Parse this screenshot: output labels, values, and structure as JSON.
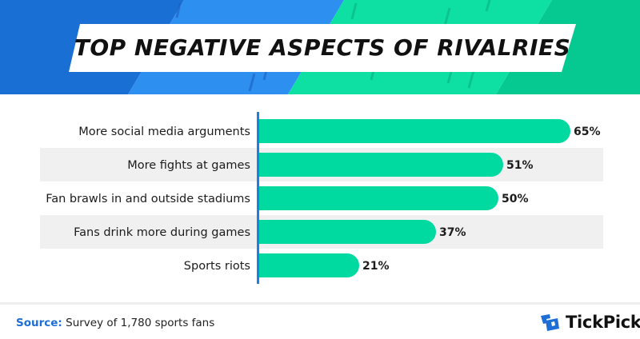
{
  "header": {
    "title": "TOP NEGATIVE ASPECTS OF RIVALRIES"
  },
  "chart_data": {
    "type": "bar",
    "orientation": "horizontal",
    "title": "TOP NEGATIVE ASPECTS OF RIVALRIES",
    "categories": [
      "More social media arguments",
      "More fights at games",
      "Fan brawls in and outside stadiums",
      "Fans drink more during games",
      "Sports riots"
    ],
    "values": [
      65,
      51,
      50,
      37,
      21
    ],
    "value_labels": [
      "65%",
      "51%",
      "50%",
      "37%",
      "21%"
    ],
    "unit": "%",
    "xlim": [
      0,
      100
    ],
    "grid": false,
    "legend": "none",
    "bar_color": "#00d9a0",
    "axis_color": "#1e7fe0",
    "row_stripe_color": "#f0f0f0"
  },
  "footer": {
    "source_key": "Source:",
    "source_text": "Survey of 1,780 sports fans",
    "brand": "TickPick"
  },
  "colors": {
    "banner_blue_dark": "#1a6fd4",
    "banner_blue": "#2d8ff0",
    "banner_green": "#06c992",
    "banner_green_light": "#0ee0a4",
    "accent_blue": "#1e6ed6"
  }
}
